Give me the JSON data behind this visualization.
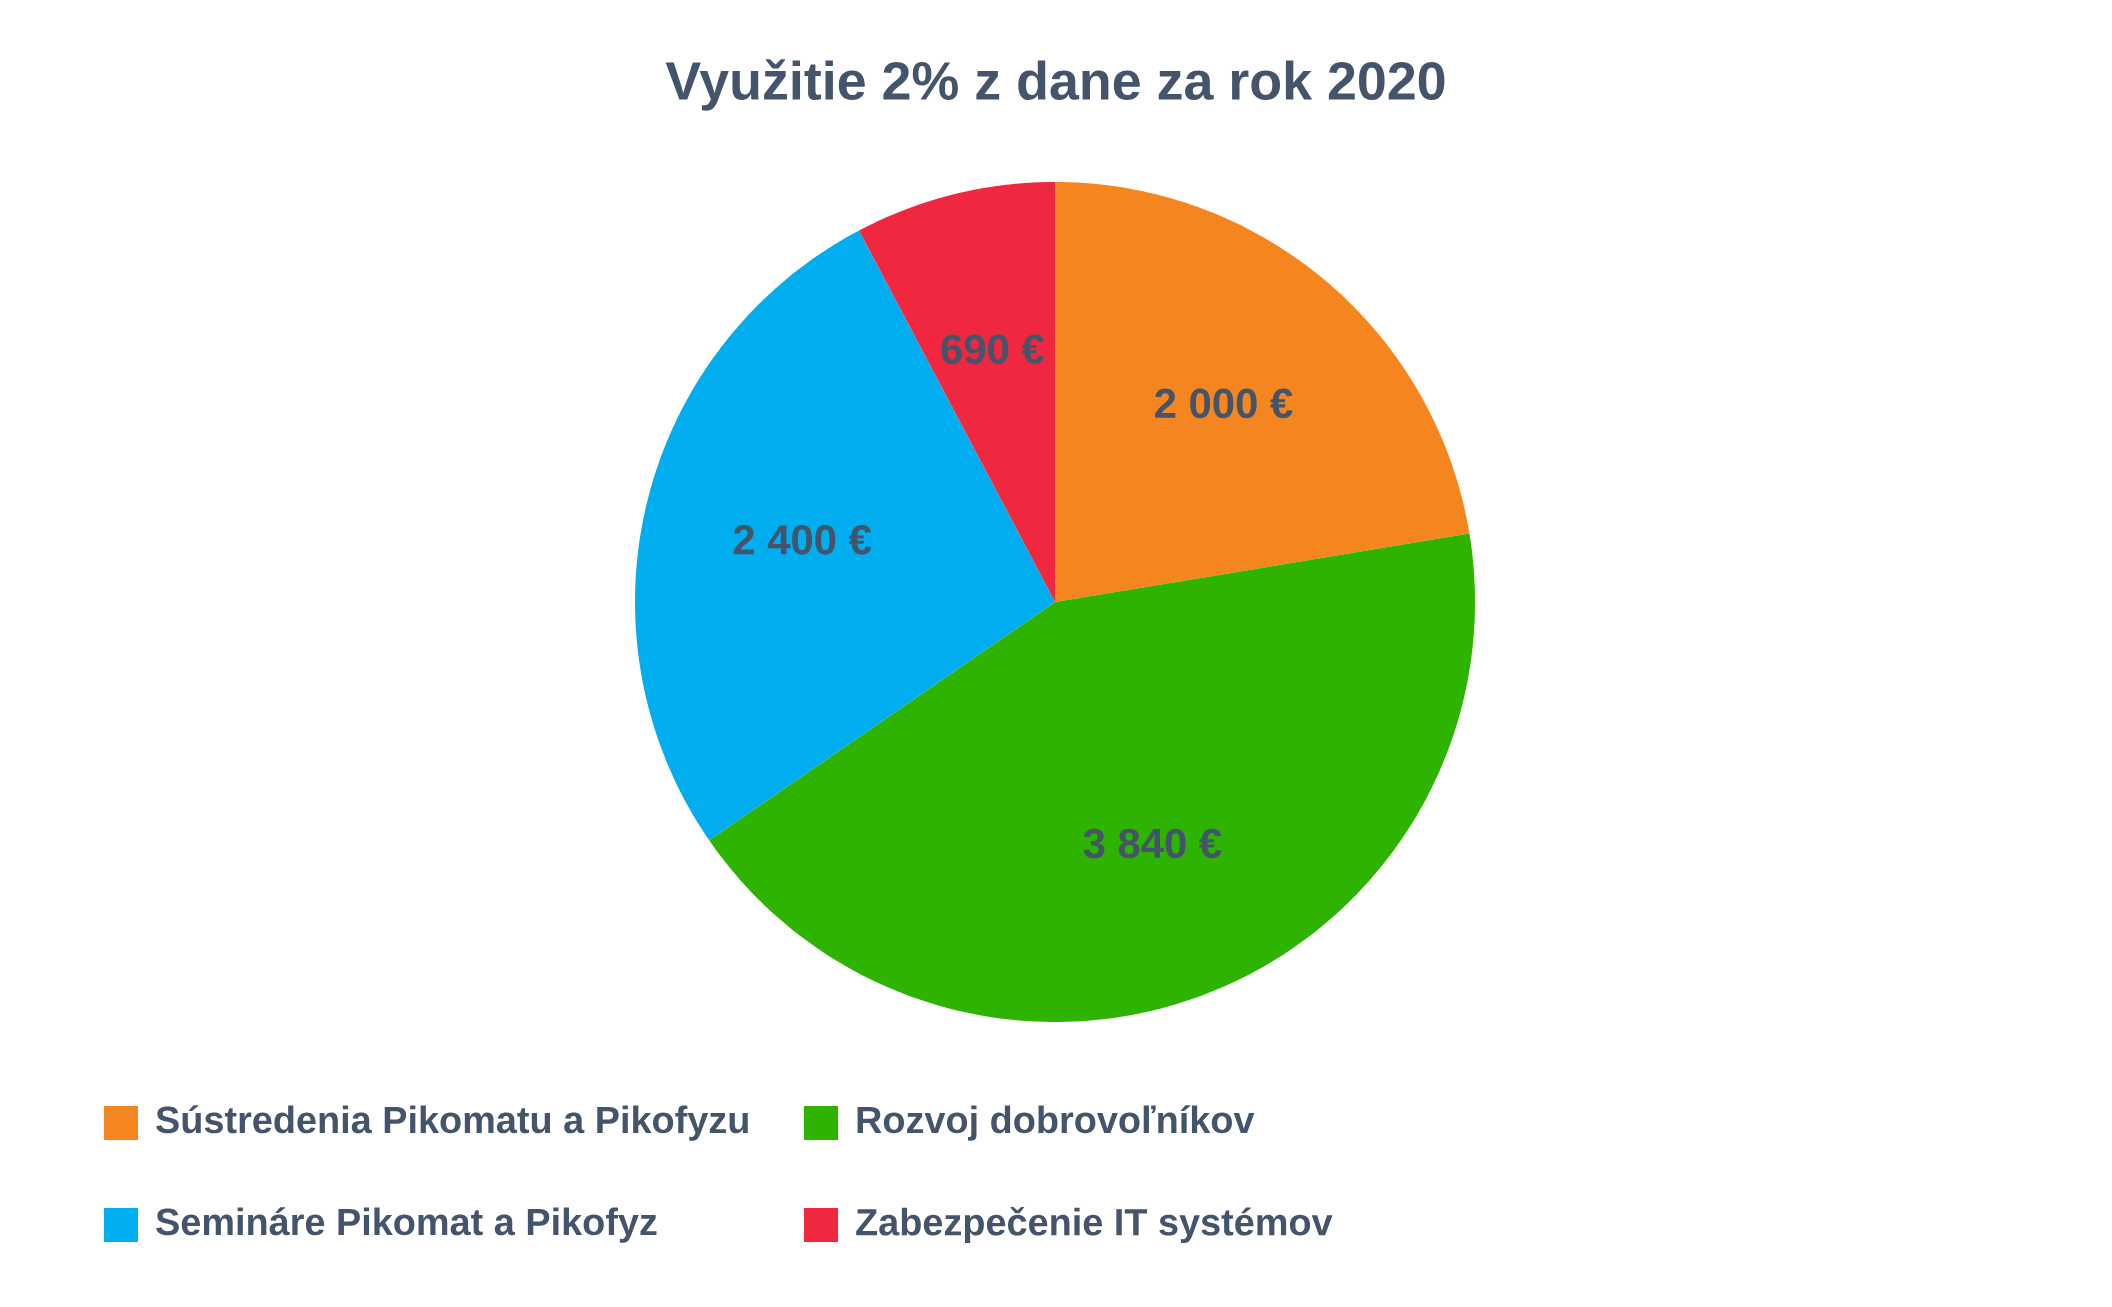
{
  "chart_data": {
    "type": "pie",
    "title": "Využitie 2% z dane za rok 2020",
    "categories": [
      "Sústredenia Pikomatu a Pikofyzu",
      "Rozvoj dobrovoľníkov",
      "Semináre Pikomat a Pikofyz",
      "Zabezpečenie IT systémov"
    ],
    "values": [
      2000,
      3840,
      2400,
      690
    ],
    "value_labels": [
      "2 000 €",
      "3 840 €",
      "2 400 €",
      "690 €"
    ],
    "colors": [
      "#f5861f",
      "#2db300",
      "#00adef",
      "#ef2840"
    ],
    "legend": "bottom"
  }
}
